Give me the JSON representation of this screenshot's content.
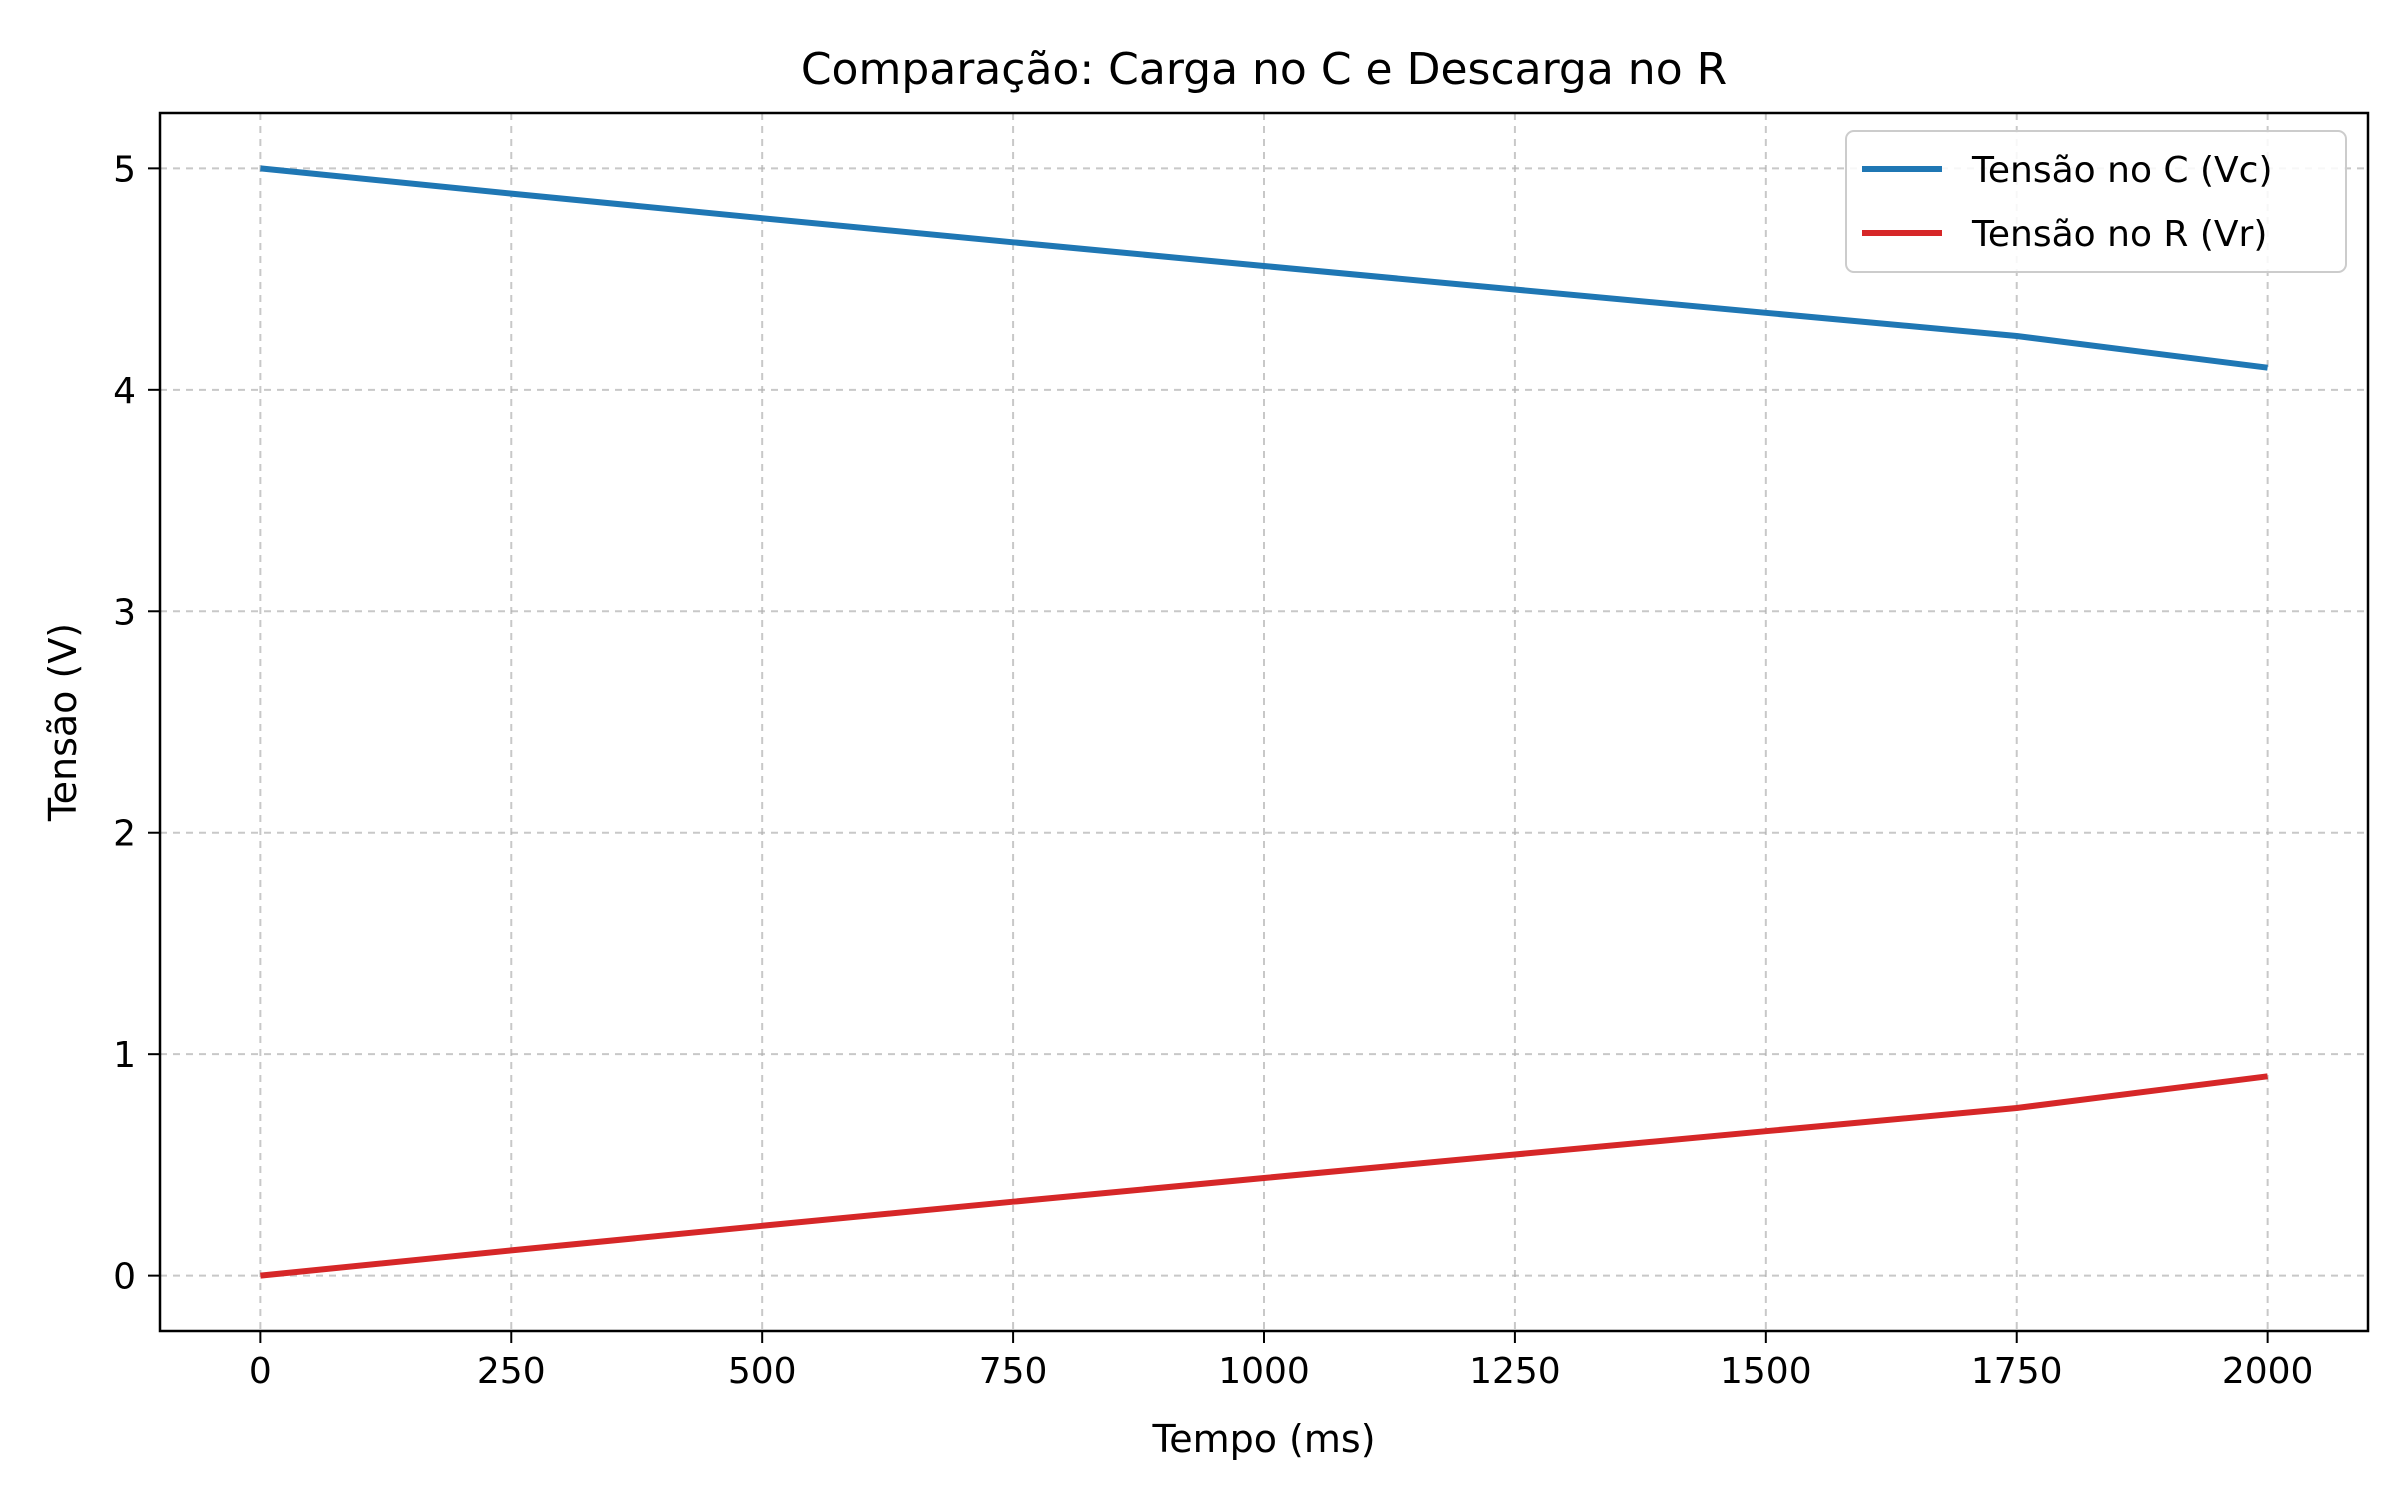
{
  "chart_data": {
    "type": "line",
    "title": "Comparação: Carga no C e Descarga no R",
    "xlabel": "Tempo (ms)",
    "ylabel": "Tensão (V)",
    "xlim": [
      -100,
      2100
    ],
    "ylim": [
      -0.25,
      5.25
    ],
    "x_ticks": [
      0,
      250,
      500,
      750,
      1000,
      1250,
      1500,
      1750,
      2000
    ],
    "x_tick_labels": [
      "0",
      "250",
      "500",
      "750",
      "1000",
      "1250",
      "1500",
      "1750",
      "2000"
    ],
    "y_ticks": [
      0,
      1,
      2,
      3,
      4,
      5
    ],
    "y_tick_labels": [
      "0",
      "1",
      "2",
      "3",
      "4",
      "5"
    ],
    "grid": true,
    "legend_position": "top-right",
    "series": [
      {
        "name": "Tensão no C (Vc)",
        "color": "#1f77b4",
        "x": [
          0,
          250,
          500,
          750,
          1000,
          1250,
          1500,
          1750,
          2000
        ],
        "y": [
          5.0,
          4.886,
          4.775,
          4.666,
          4.559,
          4.453,
          4.348,
          4.243,
          4.1
        ]
      },
      {
        "name": "Tensão no R (Vr)",
        "color": "#d62728",
        "x": [
          0,
          250,
          500,
          750,
          1000,
          1250,
          1500,
          1750,
          2000
        ],
        "y": [
          0.0,
          0.114,
          0.225,
          0.334,
          0.441,
          0.547,
          0.652,
          0.757,
          0.9
        ]
      }
    ]
  }
}
